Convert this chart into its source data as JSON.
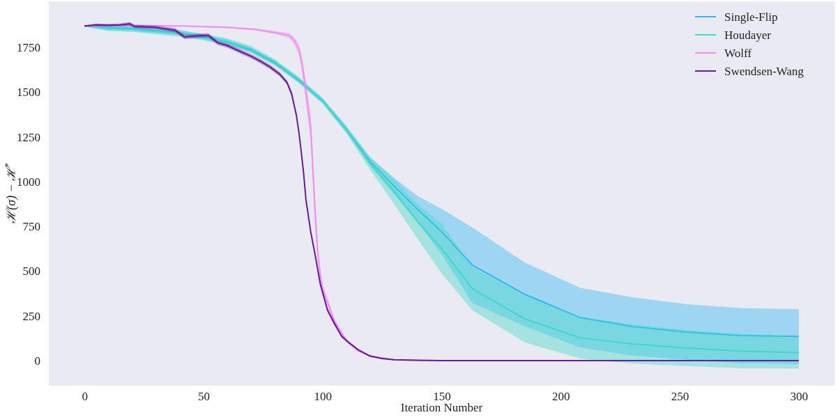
{
  "chart_data": {
    "type": "line",
    "xlabel": "Iteration Number",
    "ylabel": "ℋ(σ) − ℋ$^{*}$",
    "xlim": [
      -15,
      315
    ],
    "ylim": [
      -136,
      2007
    ],
    "xticks": [
      0,
      50,
      100,
      150,
      200,
      250,
      300
    ],
    "yticks": [
      0,
      250,
      500,
      750,
      1000,
      1250,
      1500,
      1750
    ],
    "legend": "top right",
    "line_style": "solid",
    "series": [
      {
        "name": "Single-Flip",
        "color": "#2db6f5",
        "x": [
          0,
          10,
          20,
          30,
          40,
          50,
          60,
          70,
          80,
          90,
          100,
          110,
          120,
          130,
          140,
          150,
          163,
          185,
          208,
          230,
          253,
          275,
          300
        ],
        "values": [
          1870,
          1860,
          1856,
          1845,
          1832,
          1808,
          1780,
          1734,
          1662,
          1566,
          1452,
          1292,
          1112,
          976,
          845,
          720,
          532,
          370,
          241,
          191,
          160,
          140,
          135
        ],
        "lower": [
          1865,
          1848,
          1841,
          1830,
          1817,
          1793,
          1765,
          1719,
          1647,
          1551,
          1437,
          1274,
          1087,
          931,
          771,
          592,
          321,
          192,
          74,
          28,
          5,
          -14,
          -18
        ],
        "upper": [
          1875,
          1872,
          1871,
          1860,
          1847,
          1823,
          1795,
          1749,
          1677,
          1581,
          1467,
          1310,
          1137,
          1021,
          919,
          848,
          743,
          548,
          408,
          354,
          315,
          294,
          288
        ]
      },
      {
        "name": "Houdayer",
        "color": "#3fd9c6",
        "x": [
          0,
          10,
          20,
          30,
          40,
          50,
          60,
          70,
          80,
          90,
          100,
          110,
          120,
          130,
          140,
          150,
          163,
          185,
          208,
          230,
          253,
          275,
          300
        ],
        "values": [
          1870,
          1856,
          1852,
          1840,
          1828,
          1806,
          1782,
          1740,
          1668,
          1570,
          1450,
          1290,
          1100,
          945,
          775,
          626,
          400,
          233,
          128,
          93,
          70,
          54,
          45
        ],
        "lower": [
          1865,
          1841,
          1837,
          1822,
          1810,
          1788,
          1764,
          1722,
          1653,
          1555,
          1435,
          1270,
          1065,
          875,
          678,
          486,
          280,
          101,
          12,
          -16,
          -30,
          -43,
          -45
        ],
        "upper": [
          1875,
          1871,
          1867,
          1858,
          1846,
          1824,
          1800,
          1758,
          1683,
          1585,
          1465,
          1310,
          1135,
          1015,
          872,
          766,
          520,
          365,
          244,
          202,
          170,
          151,
          135
        ]
      },
      {
        "name": "Wolff",
        "color": "#f28cf0",
        "x": [
          0,
          20,
          40,
          60,
          72,
          82,
          86,
          88,
          90,
          91,
          92,
          93,
          94,
          95,
          96,
          97,
          98,
          99,
          100,
          105,
          110,
          115,
          120,
          130,
          140,
          200,
          300
        ],
        "values": [
          1870,
          1873,
          1870,
          1862,
          1850,
          1828,
          1815,
          1790,
          1740,
          1680,
          1600,
          1500,
          1400,
          1300,
          1050,
          800,
          600,
          480,
          400,
          220,
          110,
          55,
          25,
          5,
          1,
          0,
          0
        ],
        "lower": [
          1867,
          1870,
          1867,
          1858,
          1844,
          1818,
          1800,
          1770,
          1710,
          1640,
          1550,
          1440,
          1330,
          1220,
          970,
          730,
          550,
          440,
          370,
          205,
          100,
          49,
          21,
          3,
          0,
          0,
          0
        ],
        "upper": [
          1873,
          1876,
          1873,
          1866,
          1856,
          1838,
          1830,
          1810,
          1770,
          1720,
          1650,
          1560,
          1470,
          1380,
          1130,
          870,
          650,
          520,
          430,
          235,
          120,
          61,
          29,
          7,
          2,
          0,
          0
        ]
      },
      {
        "name": "Swendsen-Wang",
        "color": "#6a1b9a",
        "x": [
          0,
          5,
          10,
          15,
          19,
          21,
          30,
          38,
          42,
          48,
          52,
          56,
          60,
          65,
          70,
          74,
          78,
          82,
          85,
          87,
          89,
          90,
          91,
          92,
          93,
          95,
          97,
          99,
          102,
          105,
          108,
          111,
          115,
          120,
          125,
          130,
          140,
          150,
          200,
          300
        ],
        "values": [
          1870,
          1876,
          1874,
          1876,
          1882,
          1867,
          1862,
          1846,
          1808,
          1815,
          1817,
          1775,
          1760,
          1730,
          1700,
          1672,
          1640,
          1600,
          1555,
          1490,
          1370,
          1280,
          1170,
          1050,
          900,
          720,
          580,
          430,
          284,
          206,
          136,
          101,
          60,
          25,
          12,
          5,
          2,
          0,
          0,
          0
        ],
        "lower": [
          1867,
          1868,
          1866,
          1868,
          1872,
          1857,
          1852,
          1834,
          1796,
          1803,
          1805,
          1763,
          1748,
          1718,
          1688,
          1660,
          1628,
          1588,
          1543,
          1475,
          1355,
          1265,
          1155,
          1035,
          885,
          705,
          565,
          415,
          272,
          196,
          128,
          95,
          55,
          21,
          9,
          3,
          1,
          0,
          0,
          0
        ],
        "upper": [
          1873,
          1884,
          1882,
          1884,
          1892,
          1877,
          1872,
          1858,
          1820,
          1827,
          1829,
          1787,
          1772,
          1742,
          1712,
          1684,
          1652,
          1612,
          1567,
          1505,
          1385,
          1295,
          1185,
          1065,
          915,
          735,
          595,
          445,
          296,
          216,
          144,
          107,
          65,
          29,
          15,
          7,
          3,
          0,
          0,
          0
        ]
      }
    ]
  }
}
